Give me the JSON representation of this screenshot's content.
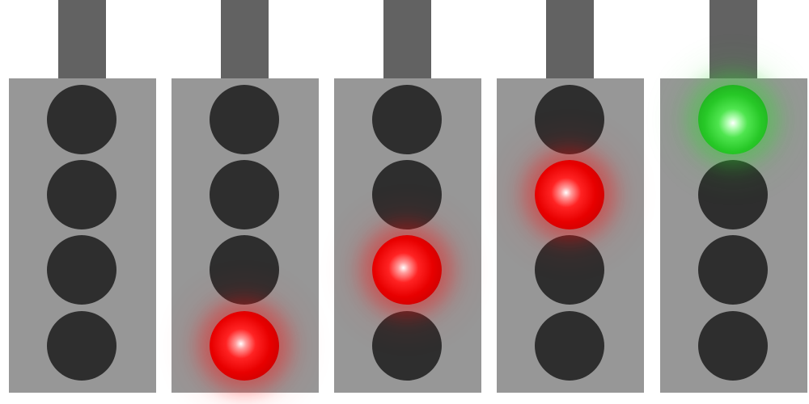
{
  "signals": [
    {
      "lamps": [
        "off",
        "off",
        "off",
        "off"
      ]
    },
    {
      "lamps": [
        "off",
        "off",
        "off",
        "red"
      ]
    },
    {
      "lamps": [
        "off",
        "off",
        "red",
        "off"
      ]
    },
    {
      "lamps": [
        "off",
        "red",
        "off",
        "off"
      ]
    },
    {
      "lamps": [
        "green",
        "off",
        "off",
        "off"
      ]
    }
  ],
  "colors": {
    "pole": "#626262",
    "housing": "#979797",
    "lamp_off": "#2e2e2e",
    "lamp_red": "#e80000",
    "lamp_green": "#27c827"
  }
}
